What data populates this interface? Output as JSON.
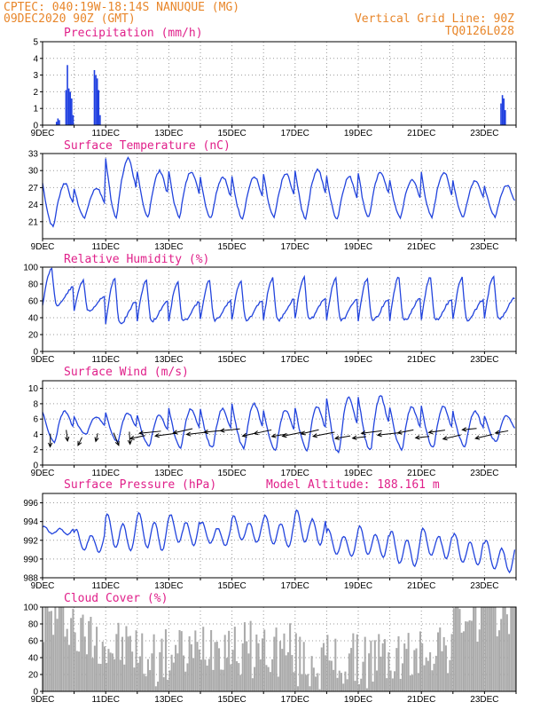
{
  "header": {
    "line1": "CPTEC:   040:19W-18:14S  NANUQUE (MG)",
    "line2": "09DEC2020 90Z (GMT)",
    "grid_note": "Vertical Grid Line: 90Z",
    "code": "TQ0126L028"
  },
  "x_labels": [
    "9DEC",
    "11DEC",
    "13DEC",
    "15DEC",
    "17DEC",
    "19DEC",
    "21DEC",
    "23DEC"
  ],
  "colors": {
    "line": "#2244dd",
    "bar": "#1f3fe0",
    "cloud": "#aaaaaa",
    "header": "#e8862a",
    "title": "#e0208a"
  },
  "chart_data": [
    {
      "type": "bar",
      "title": "Precipitation (mm/h)",
      "ylim": [
        0,
        5
      ],
      "yticks": [
        0,
        1,
        2,
        3,
        4,
        5
      ],
      "x_day_range": [
        0,
        15
      ],
      "events": [
        {
          "x": 0.42,
          "values": [
            0.2,
            0.4,
            0.3
          ]
        },
        {
          "x": 0.72,
          "values": [
            2.1,
            3.6,
            2.2,
            2.0,
            1.6,
            0.6
          ]
        },
        {
          "x": 1.62,
          "values": [
            3.3,
            3.0,
            2.8,
            2.1,
            0.6
          ]
        },
        {
          "x": 14.5,
          "values": [
            1.3,
            1.8,
            1.6,
            0.9
          ]
        }
      ]
    },
    {
      "type": "line",
      "title": "Surface Temperature (nC)",
      "ylim": [
        18,
        33
      ],
      "yticks": [
        21,
        24,
        27,
        30,
        33
      ],
      "daily_min": [
        20.1,
        21.7,
        21.9,
        21.8,
        21.9,
        21.6,
        21.6,
        21.7,
        21.6,
        21.5,
        21.8,
        21.7,
        21.7,
        21.8,
        21.9
      ],
      "daily_max": [
        27.8,
        26.9,
        32.1,
        29.9,
        29.9,
        28.9,
        28.9,
        29.4,
        30.2,
        28.9,
        29.7,
        28.4,
        29.7,
        28.3,
        27.4
      ]
    },
    {
      "type": "line",
      "title": "Relative Humidity (%)",
      "ylim": [
        0,
        100
      ],
      "yticks": [
        0,
        20,
        40,
        60,
        80,
        100
      ],
      "daily_min": [
        55,
        48,
        33,
        36,
        36,
        37,
        37,
        37,
        38,
        37,
        37,
        37,
        37,
        37,
        38
      ],
      "daily_max": [
        98,
        84,
        86,
        85,
        82,
        84,
        84,
        87,
        88,
        87,
        87,
        88,
        88,
        87,
        90
      ]
    },
    {
      "type": "line",
      "title": "Surface Wind (m/s)",
      "ylim": [
        0,
        11
      ],
      "yticks": [
        0,
        2,
        4,
        6,
        8,
        10
      ],
      "daily_min": [
        3.0,
        4.0,
        3.0,
        2.5,
        2.3,
        2.2,
        2.2,
        2.0,
        1.9,
        1.5,
        1.8,
        2.0,
        2.2,
        2.4,
        3.0
      ],
      "daily_max": [
        7.0,
        6.3,
        6.8,
        6.5,
        7.3,
        7.3,
        8.0,
        7.2,
        7.6,
        8.8,
        9.0,
        7.6,
        7.7,
        7.0,
        6.5
      ]
    },
    {
      "type": "line",
      "title": "Surface Pressure (hPa)",
      "ylim": [
        988,
        997
      ],
      "yticks": [
        988,
        990,
        992,
        994,
        996
      ],
      "annotation": "Model Altitude: 188.161 m",
      "daily_min": [
        992.5,
        990.5,
        990.5,
        990.5,
        991.2,
        991.2,
        991.5,
        991.0,
        991.2,
        990.0,
        989.9,
        988.9,
        989.8,
        989.0,
        988.3
      ],
      "daily_max": [
        993.5,
        993.2,
        994.8,
        995.0,
        994.8,
        994.0,
        994.6,
        994.7,
        995.2,
        993.2,
        993.5,
        993.0,
        993.3,
        992.7,
        992.0
      ]
    },
    {
      "type": "bar",
      "title": "Cloud Cover (%)",
      "ylim": [
        0,
        100
      ],
      "yticks": [
        0,
        20,
        40,
        60,
        80,
        100
      ],
      "daily_mean": [
        88,
        66,
        52,
        40,
        45,
        60,
        50,
        50,
        36,
        34,
        38,
        40,
        55,
        90,
        97
      ]
    }
  ]
}
